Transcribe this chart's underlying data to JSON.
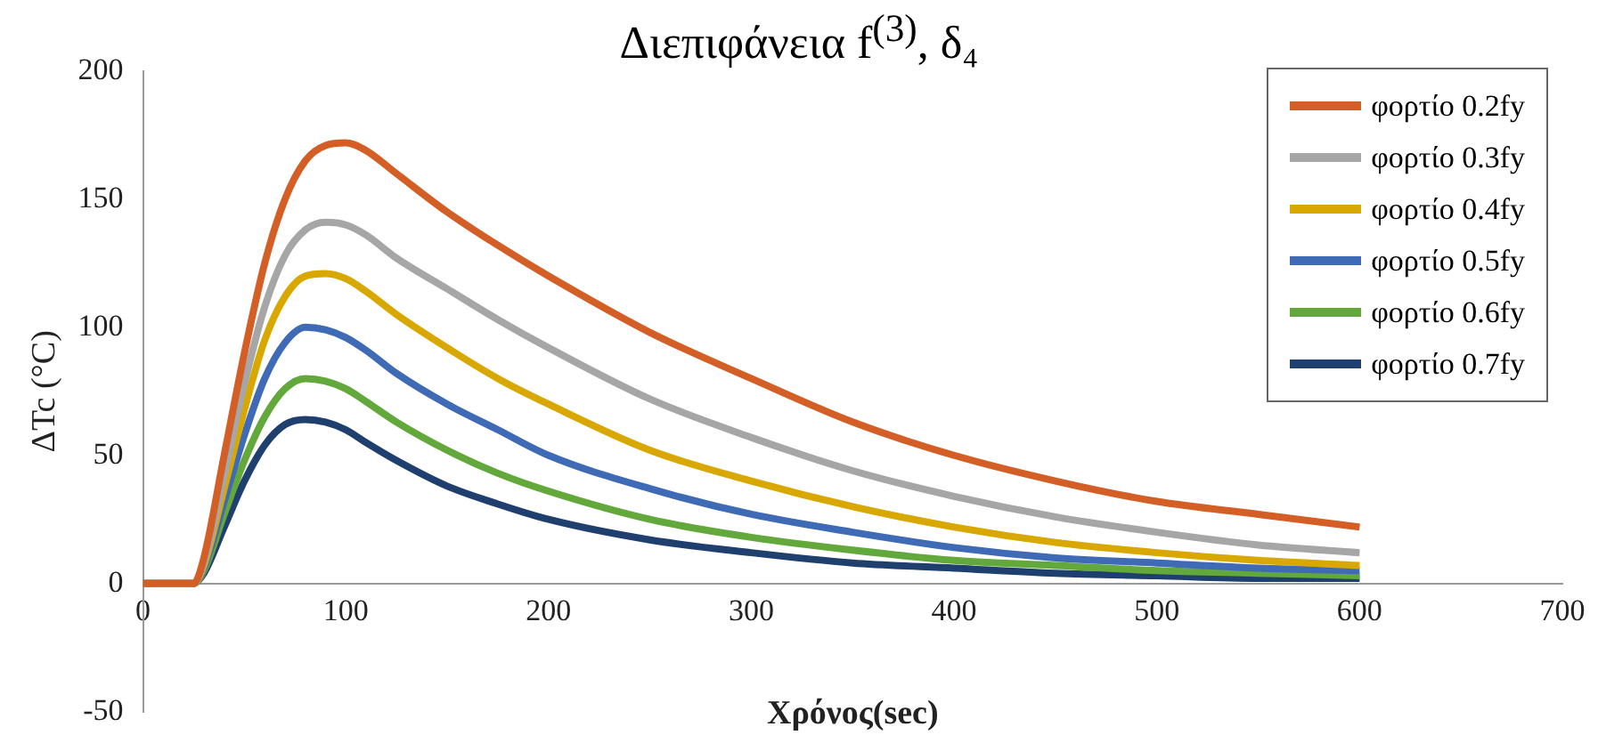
{
  "chart_data": {
    "type": "line",
    "title": "Διεπιφάνεια f$^{(3)}$, δ₄",
    "xlabel": "Χρόνος(sec)",
    "ylabel": "ΔTc (°C)",
    "x": [
      0,
      20,
      25,
      30,
      40,
      50,
      60,
      70,
      80,
      90,
      100,
      110,
      125,
      150,
      175,
      200,
      250,
      300,
      350,
      400,
      450,
      500,
      550,
      600
    ],
    "series": [
      {
        "name": "φορτίο 0.2fy",
        "color": "#d35f27",
        "values": [
          0,
          0,
          0,
          10,
          50,
          90,
          125,
          150,
          165,
          171,
          172,
          169,
          160,
          145,
          132,
          120,
          98,
          80,
          63,
          50,
          40,
          32,
          27,
          22
        ]
      },
      {
        "name": "φορτίο 0.3fy",
        "color": "#a6a6a6",
        "values": [
          0,
          0,
          0,
          8,
          42,
          78,
          108,
          128,
          138,
          141,
          140,
          136,
          127,
          115,
          103,
          92,
          72,
          57,
          44,
          34,
          26,
          20,
          15,
          12
        ]
      },
      {
        "name": "φορτίο 0.4fy",
        "color": "#d9a800",
        "values": [
          0,
          0,
          0,
          7,
          37,
          68,
          95,
          112,
          120,
          121,
          119,
          114,
          105,
          92,
          80,
          70,
          52,
          40,
          30,
          22,
          16,
          12,
          9,
          7
        ]
      },
      {
        "name": "φορτίο 0.5fy",
        "color": "#3f6ab5",
        "values": [
          0,
          0,
          0,
          6,
          32,
          58,
          80,
          94,
          100,
          99,
          96,
          91,
          82,
          70,
          60,
          50,
          37,
          27,
          20,
          14,
          10,
          8,
          6,
          5
        ]
      },
      {
        "name": "φορτίο 0.6fy",
        "color": "#62a83a",
        "values": [
          0,
          0,
          0,
          5,
          27,
          48,
          65,
          76,
          80,
          79,
          76,
          71,
          63,
          52,
          43,
          36,
          25,
          18,
          13,
          9,
          7,
          5,
          4,
          3
        ]
      },
      {
        "name": "φορτίο 0.7fy",
        "color": "#1f3f6f",
        "values": [
          0,
          0,
          0,
          4,
          22,
          40,
          54,
          62,
          64,
          63,
          60,
          55,
          48,
          38,
          31,
          25,
          17,
          12,
          8,
          6,
          4,
          3,
          2,
          2
        ]
      }
    ],
    "xlim": [
      0,
      700
    ],
    "xticks": [
      0,
      100,
      200,
      300,
      400,
      500,
      600,
      700
    ],
    "ylim": [
      -50,
      200
    ],
    "yticks": [
      -50,
      0,
      50,
      100,
      150,
      200
    ],
    "grid": false,
    "legend": "top right"
  }
}
